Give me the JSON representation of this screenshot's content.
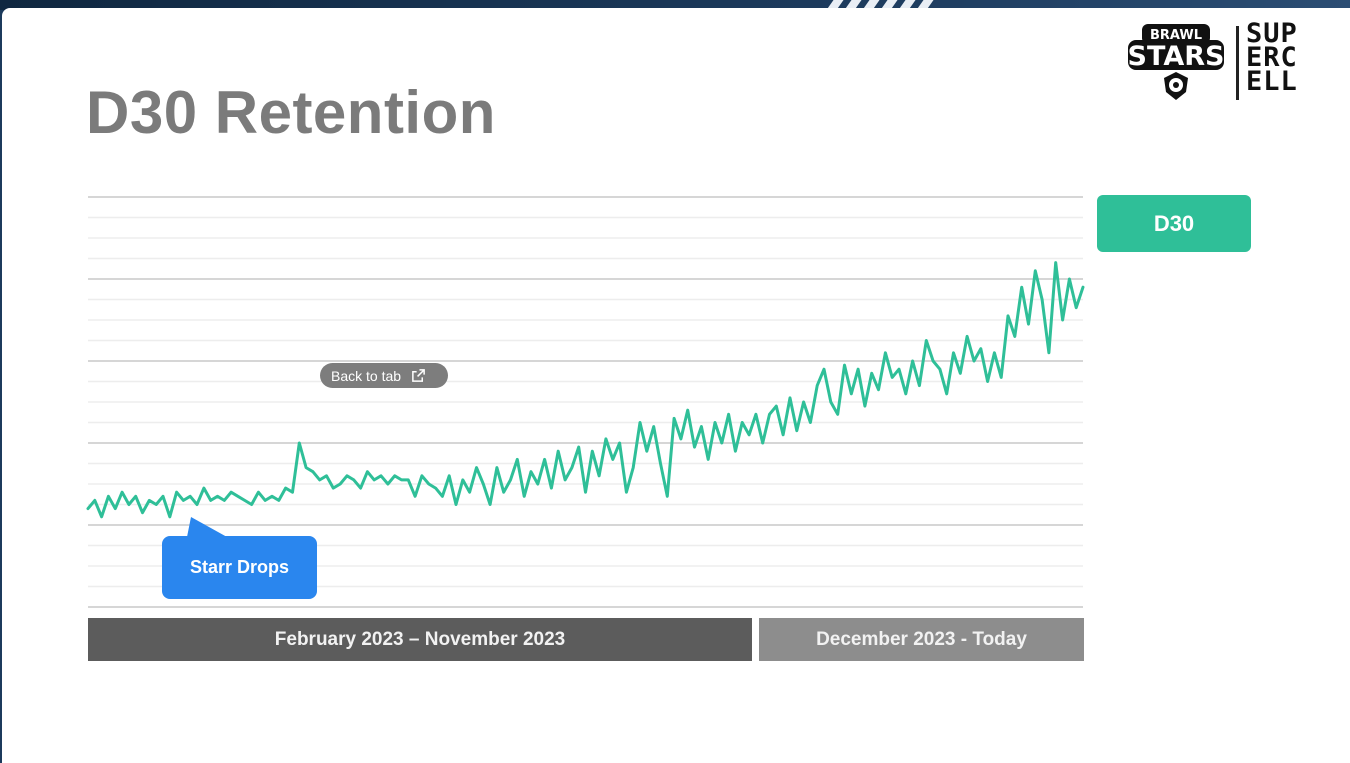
{
  "slide": {
    "title": "D30 Retention",
    "logos": {
      "brawl_stars": "BRAWL STARS",
      "supercell_lines": [
        "SUP",
        "ERC",
        "ELL"
      ]
    }
  },
  "overlay": {
    "back_to_tab_label": "Back to tab",
    "icon": "external-link-icon"
  },
  "callout": {
    "label": "Starr Drops"
  },
  "legend": {
    "label": "D30",
    "color": "#2fbf98"
  },
  "periods": [
    {
      "label": "February 2023 – November 2023",
      "color": "#5c5c5c"
    },
    {
      "label": "December 2023 - Today",
      "color": "#8d8d8d"
    }
  ],
  "colors": {
    "line": "#2fbf98",
    "title": "#7b7b7b",
    "callout": "#2a86ee",
    "background": "#1c3a5c"
  },
  "chart_data": {
    "type": "line",
    "title": "D30 Retention",
    "xlabel": "",
    "ylabel": "",
    "ylim": [
      0,
      100
    ],
    "grid": true,
    "legend_position": "top-right",
    "series": [
      {
        "name": "D30",
        "color": "#2fbf98",
        "values": [
          24,
          26,
          22,
          27,
          24,
          28,
          25,
          27,
          23,
          26,
          25,
          27,
          22,
          28,
          26,
          27,
          25,
          29,
          26,
          27,
          26,
          28,
          27,
          26,
          25,
          28,
          26,
          27,
          26,
          29,
          28,
          40,
          34,
          33,
          31,
          32,
          29,
          30,
          32,
          31,
          29,
          33,
          31,
          32,
          30,
          32,
          31,
          31,
          27,
          32,
          30,
          29,
          27,
          32,
          25,
          31,
          28,
          34,
          30,
          25,
          34,
          28,
          31,
          36,
          27,
          33,
          30,
          36,
          29,
          38,
          31,
          34,
          39,
          28,
          38,
          32,
          41,
          36,
          40,
          28,
          34,
          45,
          38,
          44,
          35,
          27,
          46,
          41,
          48,
          39,
          44,
          36,
          45,
          40,
          47,
          38,
          45,
          42,
          47,
          40,
          47,
          49,
          42,
          51,
          43,
          50,
          45,
          54,
          58,
          50,
          47,
          59,
          52,
          58,
          49,
          57,
          53,
          62,
          56,
          58,
          52,
          60,
          54,
          65,
          60,
          58,
          52,
          62,
          57,
          66,
          60,
          63,
          55,
          62,
          56,
          71,
          66,
          78,
          69,
          82,
          75,
          62,
          84,
          70,
          80,
          73,
          78
        ]
      }
    ]
  }
}
